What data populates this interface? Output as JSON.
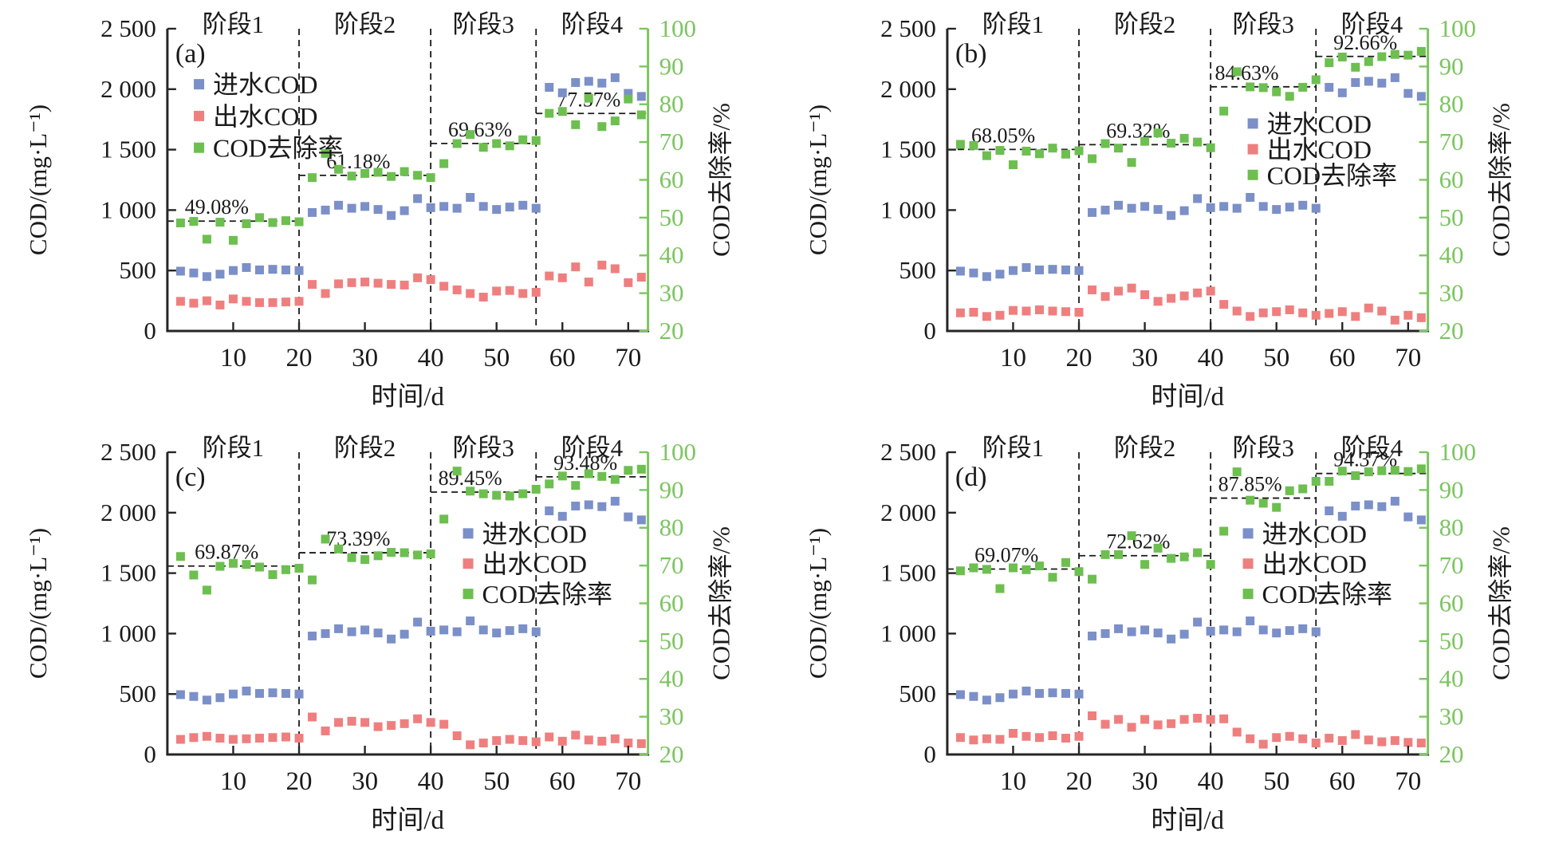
{
  "figure": {
    "background": "#ffffff",
    "description_visible_text_only": true
  },
  "colors": {
    "influent": "#7b8fc8",
    "effluent": "#ef7f7f",
    "removal": "#6dbf50",
    "right_axis_green": "#7cc560",
    "ink": "#1a1a1a",
    "spine": "#262626"
  },
  "axes": {
    "x": {
      "title": "时间/d",
      "min": 0,
      "max": 73,
      "ticks": [
        10,
        20,
        30,
        40,
        50,
        60,
        70
      ]
    },
    "y_left": {
      "title": "COD/(mg·L⁻¹)",
      "min": 0,
      "max": 2500,
      "ticks": [
        {
          "v": 0,
          "label": "0"
        },
        {
          "v": 500,
          "label": "500"
        },
        {
          "v": 1000,
          "label": "1 000"
        },
        {
          "v": 1500,
          "label": "1 500"
        },
        {
          "v": 2000,
          "label": "2 000"
        },
        {
          "v": 2500,
          "label": "2 500"
        }
      ]
    },
    "y_right": {
      "title": "COD去除率/%",
      "min": 20,
      "max": 100,
      "ticks": [
        {
          "v": 20,
          "label": "20"
        },
        {
          "v": 30,
          "label": "30"
        },
        {
          "v": 40,
          "label": "40"
        },
        {
          "v": 50,
          "label": "50"
        },
        {
          "v": 60,
          "label": "60"
        },
        {
          "v": 70,
          "label": "70"
        },
        {
          "v": 80,
          "label": "80"
        },
        {
          "v": 90,
          "label": "90"
        },
        {
          "v": 100,
          "label": "100"
        }
      ]
    }
  },
  "phases": {
    "labels": [
      "阶段1",
      "阶段2",
      "阶段3",
      "阶段4"
    ],
    "boundaries": [
      0,
      20,
      40,
      56,
      73
    ],
    "label_centers": [
      10,
      30,
      48,
      64.5
    ]
  },
  "legend": {
    "items": [
      {
        "key": "influent",
        "label": "进水COD"
      },
      {
        "key": "effluent",
        "label": "出水COD"
      },
      {
        "key": "removal",
        "label": "COD去除率"
      }
    ]
  },
  "chart_data": [
    {
      "type": "scatter",
      "panel": "(a)",
      "legend_pos": {
        "fx": 0.055,
        "fy": 0.185,
        "dfy": 0.105
      },
      "x": [
        2,
        4,
        6,
        8,
        10,
        12,
        14,
        16,
        18,
        20,
        22,
        24,
        26,
        28,
        30,
        32,
        34,
        36,
        38,
        40,
        42,
        44,
        46,
        48,
        50,
        52,
        54,
        56,
        58,
        60,
        62,
        64,
        66,
        68,
        70,
        72
      ],
      "series": [
        {
          "name": "进水COD",
          "key": "influent",
          "axis": "left",
          "values": [
            495,
            480,
            450,
            470,
            500,
            525,
            505,
            510,
            505,
            500,
            980,
            1000,
            1040,
            1015,
            1030,
            1005,
            955,
            995,
            1095,
            1020,
            1030,
            1015,
            1105,
            1030,
            1005,
            1025,
            1040,
            1015,
            2015,
            1970,
            2055,
            2065,
            2050,
            2095,
            1965,
            1940
          ]
        },
        {
          "name": "出水COD",
          "key": "effluent",
          "axis": "left",
          "values": [
            245,
            230,
            250,
            215,
            265,
            245,
            235,
            235,
            240,
            245,
            385,
            310,
            390,
            400,
            405,
            395,
            385,
            380,
            440,
            425,
            370,
            340,
            310,
            280,
            330,
            335,
            310,
            320,
            455,
            440,
            530,
            405,
            545,
            515,
            400,
            445
          ]
        },
        {
          "name": "COD去除率",
          "key": "removal",
          "axis": "right",
          "values": [
            48.6,
            49.0,
            44.3,
            48.8,
            44.0,
            48.4,
            50.0,
            48.7,
            49.2,
            48.9,
            60.6,
            67.0,
            62.8,
            61.0,
            61.7,
            62.0,
            60.9,
            62.2,
            61.2,
            60.6,
            64.3,
            69.6,
            72.0,
            68.6,
            69.6,
            69.0,
            70.6,
            70.4,
            77.6,
            78.1,
            74.6,
            81.6,
            74.1,
            75.6,
            81.4,
            77.2
          ]
        }
      ],
      "annotations": [
        {
          "text": "49.08%",
          "value": 49.08,
          "x_center": 7.5,
          "x_from": 0,
          "x_to": 20
        },
        {
          "text": "61.18%",
          "value": 61.18,
          "x_center": 29,
          "x_from": 20,
          "x_to": 40
        },
        {
          "text": "69.63%",
          "value": 69.63,
          "x_center": 47.5,
          "x_from": 40,
          "x_to": 56
        },
        {
          "text": "77.57%",
          "value": 77.57,
          "x_center": 64,
          "x_from": 56,
          "x_to": 73
        }
      ]
    },
    {
      "type": "scatter",
      "panel": "(b)",
      "legend_pos": {
        "fx": 0.625,
        "fy": 0.315,
        "dfy": 0.085
      },
      "x": [
        2,
        4,
        6,
        8,
        10,
        12,
        14,
        16,
        18,
        20,
        22,
        24,
        26,
        28,
        30,
        32,
        34,
        36,
        38,
        40,
        42,
        44,
        46,
        48,
        50,
        52,
        54,
        56,
        58,
        60,
        62,
        64,
        66,
        68,
        70,
        72
      ],
      "series": [
        {
          "name": "进水COD",
          "key": "influent",
          "axis": "left",
          "values": [
            495,
            480,
            450,
            470,
            500,
            525,
            505,
            510,
            505,
            500,
            980,
            1000,
            1040,
            1015,
            1030,
            1005,
            955,
            995,
            1095,
            1020,
            1030,
            1015,
            1105,
            1030,
            1005,
            1025,
            1040,
            1015,
            2015,
            1970,
            2055,
            2065,
            2050,
            2095,
            1965,
            1940
          ]
        },
        {
          "name": "出水COD",
          "key": "effluent",
          "axis": "left",
          "values": [
            150,
            155,
            120,
            130,
            170,
            165,
            175,
            165,
            160,
            155,
            340,
            285,
            330,
            355,
            300,
            245,
            270,
            290,
            315,
            330,
            220,
            165,
            120,
            150,
            160,
            175,
            150,
            130,
            145,
            160,
            120,
            190,
            165,
            90,
            130,
            110
          ]
        },
        {
          "name": "COD去除率",
          "key": "removal",
          "axis": "right",
          "values": [
            69.4,
            69.1,
            66.4,
            67.8,
            64.0,
            67.6,
            66.9,
            68.4,
            66.8,
            67.7,
            65.6,
            69.6,
            68.4,
            64.6,
            70.2,
            72.4,
            69.7,
            71.0,
            70.0,
            68.5,
            78.2,
            88.6,
            84.6,
            84.4,
            83.3,
            82.1,
            84.5,
            86.5,
            91.0,
            92.5,
            89.8,
            91.3,
            92.6,
            93.2,
            93.0,
            94.0
          ]
        }
      ],
      "annotations": [
        {
          "text": "68.05%",
          "value": 68.05,
          "x_center": 8.5,
          "x_from": 0,
          "x_to": 20
        },
        {
          "text": "69.32%",
          "value": 69.32,
          "x_center": 29,
          "x_from": 20,
          "x_to": 40
        },
        {
          "text": "84.63%",
          "value": 84.63,
          "x_center": 45.5,
          "x_from": 40,
          "x_to": 56
        },
        {
          "text": "92.66%",
          "value": 92.66,
          "x_center": 63.5,
          "x_from": 56,
          "x_to": 73
        }
      ]
    },
    {
      "type": "scatter",
      "panel": "(c)",
      "legend_pos": {
        "fx": 0.615,
        "fy": 0.27,
        "dfy": 0.1
      },
      "x": [
        2,
        4,
        6,
        8,
        10,
        12,
        14,
        16,
        18,
        20,
        22,
        24,
        26,
        28,
        30,
        32,
        34,
        36,
        38,
        40,
        42,
        44,
        46,
        48,
        50,
        52,
        54,
        56,
        58,
        60,
        62,
        64,
        66,
        68,
        70,
        72
      ],
      "series": [
        {
          "name": "进水COD",
          "key": "influent",
          "axis": "left",
          "values": [
            495,
            480,
            450,
            470,
            500,
            525,
            505,
            510,
            505,
            500,
            980,
            1000,
            1040,
            1015,
            1030,
            1005,
            955,
            995,
            1095,
            1020,
            1030,
            1015,
            1105,
            1030,
            1005,
            1025,
            1040,
            1015,
            2015,
            1970,
            2055,
            2065,
            2050,
            2095,
            1965,
            1940
          ]
        },
        {
          "name": "出水COD",
          "key": "effluent",
          "axis": "left",
          "values": [
            125,
            140,
            150,
            135,
            125,
            130,
            135,
            140,
            145,
            135,
            310,
            195,
            265,
            275,
            265,
            230,
            240,
            255,
            295,
            265,
            250,
            155,
            80,
            95,
            115,
            125,
            115,
            105,
            145,
            110,
            160,
            120,
            110,
            130,
            95,
            90
          ]
        },
        {
          "name": "COD去除率",
          "key": "removal",
          "axis": "right",
          "values": [
            72.4,
            67.5,
            63.5,
            69.8,
            70.6,
            70.3,
            69.6,
            67.6,
            68.9,
            69.3,
            66.2,
            77.0,
            74.4,
            72.1,
            71.6,
            72.6,
            73.5,
            73.4,
            72.8,
            73.1,
            82.3,
            95.0,
            89.7,
            89.0,
            88.6,
            88.4,
            89.0,
            90.2,
            91.6,
            93.7,
            91.2,
            94.3,
            93.6,
            92.8,
            95.2,
            95.5
          ]
        }
      ],
      "annotations": [
        {
          "text": "69.87%",
          "value": 69.87,
          "x_center": 9,
          "x_from": 0,
          "x_to": 20
        },
        {
          "text": "73.39%",
          "value": 73.39,
          "x_center": 29,
          "x_from": 20,
          "x_to": 40
        },
        {
          "text": "89.45%",
          "value": 89.45,
          "x_center": 46,
          "x_from": 40,
          "x_to": 56
        },
        {
          "text": "93.48%",
          "value": 93.48,
          "x_center": 63.5,
          "x_from": 56,
          "x_to": 73
        }
      ]
    },
    {
      "type": "scatter",
      "panel": "(d)",
      "legend_pos": {
        "fx": 0.615,
        "fy": 0.27,
        "dfy": 0.1
      },
      "x": [
        2,
        4,
        6,
        8,
        10,
        12,
        14,
        16,
        18,
        20,
        22,
        24,
        26,
        28,
        30,
        32,
        34,
        36,
        38,
        40,
        42,
        44,
        46,
        48,
        50,
        52,
        54,
        56,
        58,
        60,
        62,
        64,
        66,
        68,
        70,
        72
      ],
      "series": [
        {
          "name": "进水COD",
          "key": "influent",
          "axis": "left",
          "values": [
            495,
            480,
            450,
            470,
            500,
            525,
            505,
            510,
            505,
            500,
            980,
            1000,
            1040,
            1015,
            1030,
            1005,
            955,
            995,
            1095,
            1020,
            1030,
            1015,
            1105,
            1030,
            1005,
            1025,
            1040,
            1015,
            2015,
            1970,
            2055,
            2065,
            2050,
            2095,
            1965,
            1940
          ]
        },
        {
          "name": "出水COD",
          "key": "effluent",
          "axis": "left",
          "values": [
            140,
            120,
            130,
            125,
            175,
            150,
            140,
            155,
            135,
            150,
            320,
            250,
            290,
            225,
            290,
            245,
            255,
            290,
            300,
            290,
            295,
            185,
            130,
            85,
            140,
            150,
            130,
            95,
            135,
            115,
            165,
            120,
            105,
            115,
            100,
            95
          ]
        },
        {
          "name": "COD去除率",
          "key": "removal",
          "axis": "right",
          "values": [
            68.6,
            69.4,
            69.0,
            63.9,
            69.4,
            68.9,
            69.9,
            66.9,
            70.8,
            68.4,
            66.4,
            72.9,
            72.9,
            77.9,
            70.3,
            74.6,
            71.9,
            72.3,
            73.4,
            70.3,
            79.1,
            94.8,
            87.3,
            86.5,
            85.4,
            89.8,
            90.3,
            92.3,
            92.3,
            95.0,
            93.8,
            94.8,
            95.1,
            95.2,
            94.9,
            95.6
          ]
        }
      ],
      "annotations": [
        {
          "text": "69.07%",
          "value": 69.07,
          "x_center": 9,
          "x_from": 0,
          "x_to": 20
        },
        {
          "text": "72.62%",
          "value": 72.62,
          "x_center": 29,
          "x_from": 20,
          "x_to": 40
        },
        {
          "text": "87.85%",
          "value": 87.85,
          "x_center": 46,
          "x_from": 40,
          "x_to": 56
        },
        {
          "text": "94.37%",
          "value": 94.37,
          "x_center": 63.5,
          "x_from": 56,
          "x_to": 73
        }
      ]
    }
  ]
}
